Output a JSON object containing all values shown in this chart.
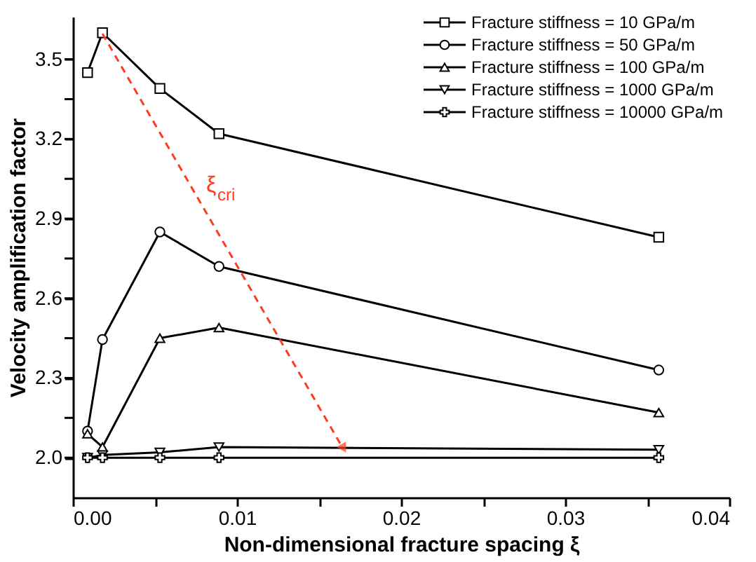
{
  "chart_data": {
    "type": "line",
    "xlabel": "Non-dimensional fracture spacing  ξ",
    "ylabel": "Velocity amplification factor",
    "x": [
      0.00089,
      0.0018,
      0.0053,
      0.0089,
      0.0357
    ],
    "series": [
      {
        "name": "Fracture stiffness = 10 GPa/m",
        "color": "#000000",
        "marker": "square",
        "values": [
          3.45,
          3.6,
          3.39,
          3.22,
          2.83
        ]
      },
      {
        "name": "Fracture stiffness = 50 GPa/m",
        "color": "#000000",
        "marker": "circle",
        "values": [
          2.1,
          2.445,
          2.85,
          2.72,
          2.33
        ]
      },
      {
        "name": "Fracture stiffness = 100 GPa/m",
        "color": "#000000",
        "marker": "triangle",
        "values": [
          2.09,
          2.04,
          2.45,
          2.49,
          2.17
        ]
      },
      {
        "name": "Fracture stiffness = 1000 GPa/m",
        "color": "#000000",
        "marker": "triangle-down",
        "values": [
          2.0,
          2.01,
          2.02,
          2.04,
          2.03
        ]
      },
      {
        "name": "Fracture stiffness = 10000 GPa/m",
        "color": "#000000",
        "marker": "cross",
        "values": [
          2.0,
          2.0,
          2.0,
          2.0,
          2.0
        ]
      }
    ],
    "xlim": [
      0,
      0.04
    ],
    "xticks": [
      {
        "value": 0,
        "label": "0.00"
      },
      {
        "value": 0.005,
        "label": null
      },
      {
        "value": 0.01,
        "label": "0.01"
      },
      {
        "value": 0.015,
        "label": null
      },
      {
        "value": 0.02,
        "label": "0.02"
      },
      {
        "value": 0.025,
        "label": null
      },
      {
        "value": 0.03,
        "label": "0.03"
      },
      {
        "value": 0.035,
        "label": null
      },
      {
        "value": 0.04,
        "label": "0.04"
      }
    ],
    "ylim": [
      1.85,
      3.66
    ],
    "yticks": [
      {
        "value": 2.0,
        "label": "2.0"
      },
      {
        "value": 2.15,
        "label": null
      },
      2.3,
      {
        "value": 2.45,
        "label": null
      },
      2.6,
      {
        "value": 2.75,
        "label": null
      },
      2.9,
      {
        "value": 3.05,
        "label": null
      },
      3.2,
      {
        "value": 3.35,
        "label": null
      },
      3.5
    ],
    "annotations": [
      "ξ$_{cri}$"
    ],
    "grid": false,
    "legend": "top right",
    "line_style": "solid"
  }
}
